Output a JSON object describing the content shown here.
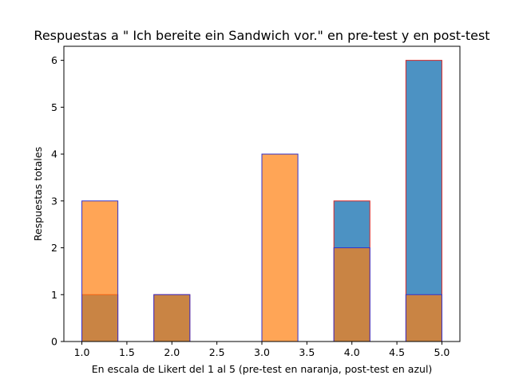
{
  "chart_data": {
    "type": "bar",
    "title": "Respuestas a \" Ich bereite ein Sandwich vor.\" en pre-test y en post-test",
    "xlabel": "En escala de Likert del 1 al 5 (pre-test en naranja, post-test en azul)",
    "ylabel": "Respuestas totales",
    "xlim": [
      0.8,
      5.2
    ],
    "ylim": [
      0,
      6.3
    ],
    "xticks": [
      "1.0",
      "1.5",
      "2.0",
      "2.5",
      "3.0",
      "3.5",
      "4.0",
      "4.5",
      "5.0"
    ],
    "yticks": [
      "0",
      "1",
      "2",
      "3",
      "4",
      "5",
      "6"
    ],
    "grid": false,
    "bins": [
      [
        1.0,
        1.4
      ],
      [
        1.4,
        1.8
      ],
      [
        1.8,
        2.2
      ],
      [
        2.2,
        2.6
      ],
      [
        2.6,
        3.0
      ],
      [
        3.0,
        3.4
      ],
      [
        3.4,
        3.8
      ],
      [
        3.8,
        4.2
      ],
      [
        4.2,
        4.6
      ],
      [
        4.6,
        5.0
      ]
    ],
    "series": [
      {
        "values": [
          1,
          0,
          1,
          0,
          0,
          0,
          0,
          3,
          0,
          6
        ],
        "fill": "#1f77b4",
        "edge": "#d62728",
        "alpha": 0.8
      },
      {
        "values": [
          3,
          0,
          1,
          0,
          0,
          4,
          0,
          2,
          0,
          1
        ],
        "fill": "#ff7f0e",
        "edge": "#3333cc",
        "alpha": 0.7
      }
    ]
  }
}
